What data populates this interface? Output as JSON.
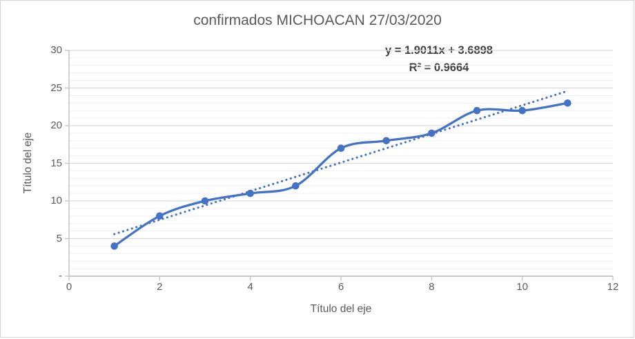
{
  "chart_data": {
    "type": "line",
    "title": "confirmados MICHOACAN 27/03/2020",
    "xlabel": "Título del eje",
    "ylabel": "Título del eje",
    "x": [
      1,
      2,
      3,
      4,
      5,
      6,
      7,
      8,
      9,
      10,
      11
    ],
    "values": [
      4,
      8,
      10,
      11,
      12,
      17,
      18,
      19,
      22,
      22,
      23
    ],
    "smooth": true,
    "markers": true,
    "xlim": [
      0,
      12
    ],
    "ylim": [
      0,
      30
    ],
    "x_major_unit": 2,
    "y_major_unit": 5,
    "y_minor_unit": 1,
    "x_tick_labels": [
      "0",
      "2",
      "4",
      "6",
      "8",
      "10",
      "12"
    ],
    "y_tick_labels": [
      "30",
      "25",
      "20",
      "15",
      "10",
      "5",
      "-"
    ],
    "grid": "horizontal major and minor, no vertical",
    "legend": "none",
    "trendline": {
      "type": "linear",
      "style": "dotted",
      "slope": 1.9011,
      "intercept": 3.6898,
      "x_start": 1,
      "x_end": 11,
      "equation_label": "y = 1.9011x + 3.6898",
      "r2_label": "R² = 0.9664",
      "r_squared": 0.9664
    },
    "colors": {
      "series": "#4472C4",
      "trendline": "#4472C4",
      "major_grid": "#D9D9D9",
      "minor_grid": "#F0F0F0",
      "axis": "#C6C6C6",
      "text": "#595959",
      "equation_text": "#404040",
      "border": "#D4D4D4",
      "background": "#FFFFFF"
    }
  }
}
